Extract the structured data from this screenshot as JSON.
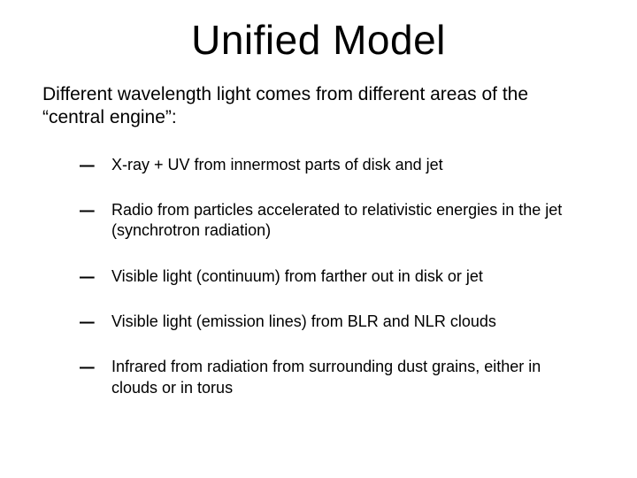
{
  "slide": {
    "title": "Unified Model",
    "intro": "Different wavelength light comes from different areas of the “central engine”:",
    "bullets": [
      "X-ray + UV from innermost parts of disk and jet",
      "Radio from particles accelerated to relativistic energies in the jet (synchrotron radiation)",
      "Visible light (continuum) from farther out in disk or jet",
      "Visible light (emission lines) from BLR and NLR clouds",
      "Infrared from radiation from surrounding dust grains, either in clouds or in torus"
    ],
    "dash_char": "–"
  },
  "style": {
    "background_color": "#ffffff",
    "text_color": "#000000",
    "title_fontsize": 46,
    "intro_fontsize": 21,
    "bullet_fontsize": 18,
    "dash_fontsize": 30,
    "font_family": "Arial"
  }
}
